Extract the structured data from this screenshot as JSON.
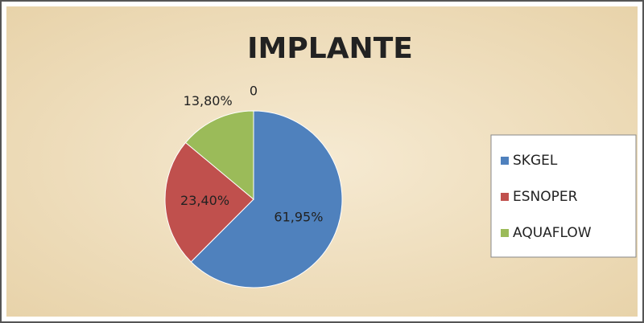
{
  "chart_data": {
    "type": "pie",
    "title": "IMPLANTE",
    "categories": [
      "SKGEL",
      "ESNOPER",
      "AQUAFLOW",
      null
    ],
    "values": [
      61.95,
      23.4,
      13.8,
      0
    ],
    "value_labels": [
      "61,95%",
      "23,40%",
      "13,80%",
      "0"
    ],
    "colors": [
      "#4f81bd",
      "#c0504d",
      "#9bbb59"
    ],
    "legend": "right"
  }
}
